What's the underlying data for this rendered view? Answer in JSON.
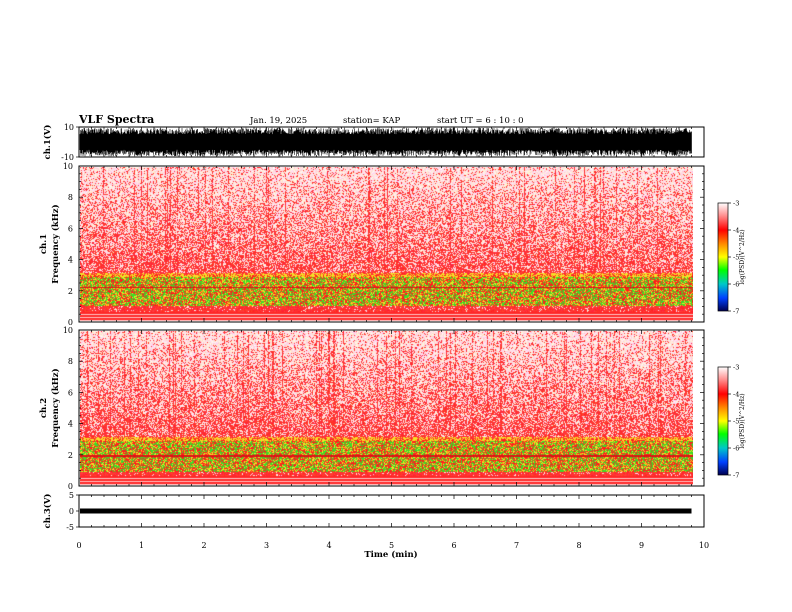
{
  "header": {
    "title": "VLF Spectra",
    "date": "Jan. 19, 2025",
    "station": "station= KAP",
    "start": "start UT = 6 : 10 : 0"
  },
  "chart_data": [
    {
      "type": "line",
      "name_panel": "ch1-waveform",
      "ylabel": "ch.1(V)",
      "ylim": [
        -10,
        10
      ],
      "ytick_labels": [
        "10",
        "-10"
      ],
      "xlim": [
        0,
        10
      ],
      "x_end": 9.8,
      "description_values": {
        "amplitude_v": [
          -9.5,
          9.5
        ]
      }
    },
    {
      "type": "heatmap",
      "name_panel": "ch1-spectrogram",
      "ylabel_line1": "ch.1",
      "ylabel_line2": "Frequency (kHz)",
      "ylim": [
        0,
        10
      ],
      "ytick_labels": [
        "0",
        "2",
        "4",
        "6",
        "8",
        "10"
      ],
      "xlim": [
        0,
        10
      ],
      "x_end": 9.8,
      "colorbar": {
        "label": "log(PSD)(V^2/Hz)",
        "range": [
          -7,
          -3
        ],
        "tick_labels": [
          "-3",
          "-4",
          "-5",
          "-6",
          "-7"
        ]
      },
      "bands": {
        "green_low_khz": 1.0,
        "green_high_khz": 3.0,
        "red_line_khz": 2.2
      }
    },
    {
      "type": "heatmap",
      "name_panel": "ch2-spectrogram",
      "ylabel_line1": "ch.2",
      "ylabel_line2": "Frequency (kHz)",
      "ylim": [
        0,
        10
      ],
      "ytick_labels": [
        "0",
        "2",
        "4",
        "6",
        "8",
        "10"
      ],
      "xlim": [
        0,
        10
      ],
      "x_end": 9.8,
      "colorbar": {
        "label": "log(PSD)(V^2/Hz)",
        "range": [
          -7,
          -3
        ],
        "tick_labels": [
          "-3",
          "-4",
          "-5",
          "-6",
          "-7"
        ]
      },
      "bands": {
        "green_low_khz": 0.9,
        "green_high_khz": 3.0,
        "red_line_khz": 1.9
      }
    },
    {
      "type": "line",
      "name_panel": "ch3-waveform",
      "ylabel": "ch.3(V)",
      "ylim": [
        -5,
        5
      ],
      "ytick_labels": [
        "5",
        "0",
        "-5"
      ],
      "xlim": [
        0,
        10
      ],
      "x_end": 9.8,
      "description_values": {
        "level_v": 0
      }
    }
  ],
  "xaxis": {
    "label": "Time (min)",
    "tick_labels": [
      "0",
      "1",
      "2",
      "3",
      "4",
      "5",
      "6",
      "7",
      "8",
      "9",
      "10"
    ]
  },
  "colors": {
    "spectrogram_base": "#ff2020",
    "band": "#33dd22",
    "yellow": "#f5e52a",
    "trace": "#000000"
  }
}
